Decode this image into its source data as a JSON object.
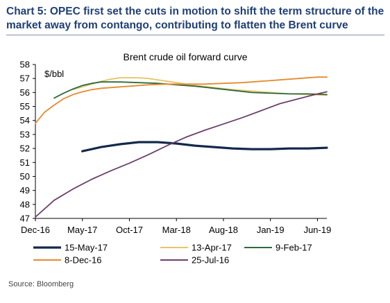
{
  "header": {
    "title": "Chart 5: OPEC first set the cuts in motion to shift the term structure of the market away from contango, contributing to flatten the Brent curve"
  },
  "footer": {
    "source": "Source: Bloomberg"
  },
  "chart_data": {
    "type": "line",
    "title": "Brent crude oil forward curve",
    "ylabel": "$/bbl",
    "xlabel": "",
    "x_ticks": [
      "Dec-16",
      "May-17",
      "Oct-17",
      "Mar-18",
      "Aug-18",
      "Jan-19",
      "Jun-19"
    ],
    "x_tick_months": [
      0,
      5,
      10,
      15,
      20,
      25,
      30
    ],
    "xlim": [
      0,
      31
    ],
    "ylim": [
      47,
      58
    ],
    "y_ticks": [
      47,
      48,
      49,
      50,
      51,
      52,
      53,
      54,
      55,
      56,
      57,
      58
    ],
    "grid": false,
    "legend_position": "bottom",
    "series": [
      {
        "name": "15-May-17",
        "color": "#13294b",
        "x": [
          5,
          7,
          9,
          11,
          13,
          15,
          17,
          19,
          21,
          23,
          25,
          27,
          29,
          31
        ],
        "y": [
          51.8,
          52.1,
          52.3,
          52.45,
          52.45,
          52.35,
          52.2,
          52.1,
          52.0,
          51.95,
          51.95,
          52.0,
          52.0,
          52.05
        ]
      },
      {
        "name": "13-Apr-17",
        "color": "#e8c46a",
        "x": [
          4,
          5,
          6,
          7,
          8,
          9,
          10,
          11,
          12,
          13,
          14,
          15,
          17,
          19,
          21,
          23,
          25,
          27,
          29,
          31
        ],
        "y": [
          56.2,
          56.4,
          56.6,
          56.8,
          56.95,
          57.05,
          57.05,
          57.05,
          57.0,
          56.9,
          56.8,
          56.7,
          56.5,
          56.35,
          56.2,
          56.1,
          56.0,
          55.9,
          55.85,
          55.8
        ]
      },
      {
        "name": "9-Feb-17",
        "color": "#2d6a3b",
        "x": [
          2,
          3,
          4,
          5,
          6,
          7,
          8,
          9,
          11,
          13,
          15,
          17,
          19,
          21,
          23,
          25,
          27,
          29,
          31
        ],
        "y": [
          55.6,
          55.95,
          56.25,
          56.5,
          56.65,
          56.75,
          56.75,
          56.75,
          56.7,
          56.65,
          56.55,
          56.45,
          56.3,
          56.15,
          56.0,
          55.95,
          55.9,
          55.9,
          55.85
        ]
      },
      {
        "name": "8-Dec-16",
        "color": "#e68a2e",
        "x": [
          0,
          1,
          2,
          3,
          4,
          5,
          6,
          7,
          8,
          10,
          12,
          14,
          16,
          18,
          20,
          22,
          24,
          26,
          28,
          30,
          31
        ],
        "y": [
          53.8,
          54.6,
          55.1,
          55.55,
          55.85,
          56.05,
          56.2,
          56.3,
          56.35,
          56.45,
          56.55,
          56.6,
          56.6,
          56.6,
          56.65,
          56.7,
          56.8,
          56.9,
          57.0,
          57.1,
          57.1
        ]
      },
      {
        "name": "25-Jul-16",
        "color": "#6b3f6b",
        "x": [
          0,
          2,
          4,
          6,
          8,
          10,
          12,
          14,
          16,
          18,
          20,
          22,
          24,
          26,
          28,
          30,
          31
        ],
        "y": [
          47.1,
          48.3,
          49.1,
          49.8,
          50.4,
          50.95,
          51.55,
          52.2,
          52.8,
          53.3,
          53.75,
          54.2,
          54.7,
          55.2,
          55.55,
          55.9,
          56.05
        ]
      }
    ],
    "legend_rows": [
      [
        "15-May-17",
        "13-Apr-17",
        "9-Feb-17"
      ],
      [
        "8-Dec-16",
        "25-Jul-16"
      ]
    ]
  }
}
